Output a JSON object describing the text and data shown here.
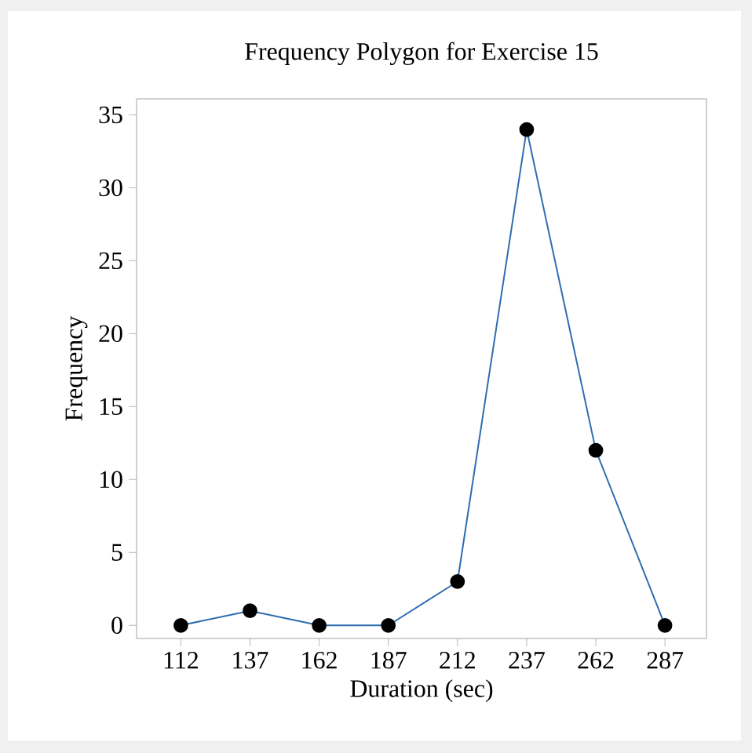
{
  "chart_data": {
    "type": "line",
    "title": "Frequency Polygon for Exercise 15",
    "xlabel": "Duration (sec)",
    "ylabel": "Frequency",
    "x": [
      112,
      137,
      162,
      187,
      212,
      237,
      262,
      287
    ],
    "values": [
      0,
      1,
      0,
      0,
      3,
      34,
      12,
      0
    ],
    "color": "#2f6db0",
    "marker": "circle",
    "line_style": "solid",
    "grid": false,
    "xlim": [
      96,
      302
    ],
    "xticks": [
      112,
      137,
      162,
      187,
      212,
      237,
      262,
      287
    ],
    "ylim": [
      -0.9,
      36.1
    ],
    "yticks": [
      0,
      5,
      10,
      15,
      20,
      25,
      30,
      35
    ]
  }
}
